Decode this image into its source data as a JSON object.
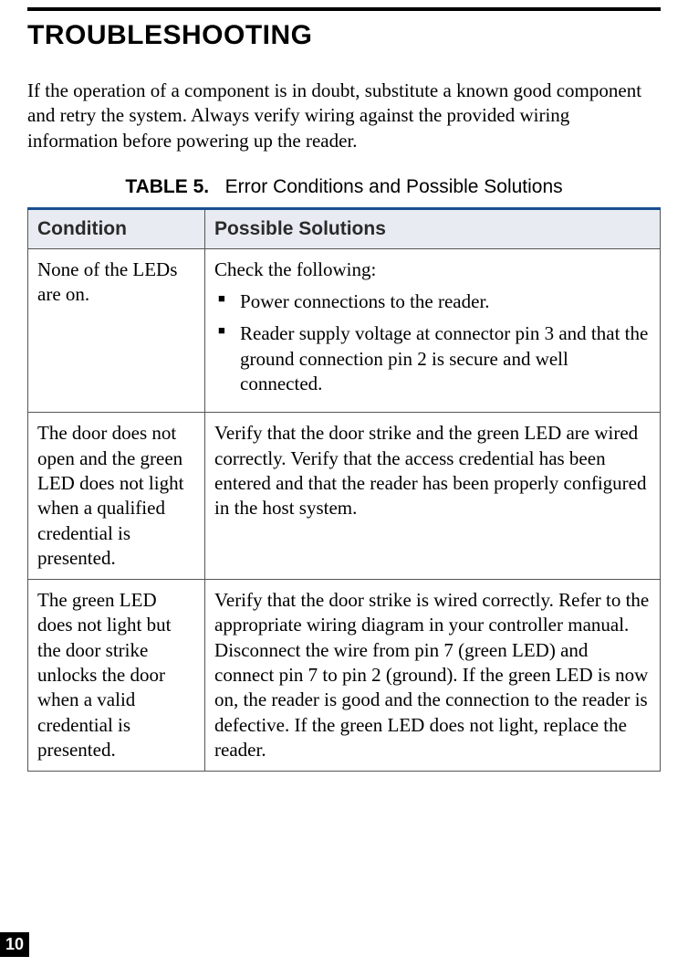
{
  "page": {
    "heading": "TROUBLESHOOTING",
    "intro": "If the operation of a component is in doubt, substitute a known good component and retry the system. Always verify wiring against the provided wiring information before powering up the reader.",
    "page_number": "10"
  },
  "table": {
    "caption_label": "TABLE 5.",
    "caption_title": "Error Conditions and Possible Solutions",
    "columns": {
      "condition": "Condition",
      "solutions": "Possible Solutions"
    },
    "rows": [
      {
        "condition": "None of the LEDs are on.",
        "solution_lead": "Check the following:",
        "bullets": [
          "Power connections to the reader.",
          "Reader supply voltage at connector pin 3 and that the ground connection pin 2 is secure and well connected."
        ]
      },
      {
        "condition": "The door does not open and the green LED does not light when a qualified credential is presented.",
        "solution_text": "Verify that the door strike and the green LED are wired correctly. Verify that the access credential has been entered and that the reader has been properly configured in the host system."
      },
      {
        "condition": "The green LED does not light but the door strike unlocks the door when a valid credential is presented.",
        "solution_text": "Verify that the door strike is wired correctly. Refer to the appropriate wiring diagram in your controller manual. Disconnect the wire from pin 7 (green LED) and connect pin 7 to pin 2 (ground). If the green LED is now on, the reader is good and the connection to the reader is defective. If the green LED does not light, replace the reader."
      }
    ]
  },
  "colors": {
    "rule_color": "#1a4e8f",
    "header_bg": "#e8ecf2",
    "border": "#555555",
    "text": "#000000"
  }
}
